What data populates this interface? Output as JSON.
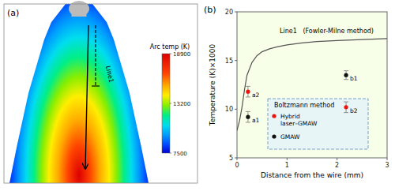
{
  "chart_data": [
    {
      "type": "image",
      "title": "(a)",
      "colorbar_title": "Arc temp (K)",
      "colorbar_range": [
        7500,
        18900
      ],
      "colorbar_ticks": [
        7500,
        13200,
        18900
      ],
      "annotations": [
        "Line1"
      ]
    },
    {
      "type": "line",
      "title": "(b)",
      "xlabel": "Distance from the wire (mm)",
      "ylabel": "Temperature (K)×1000",
      "xlim": [
        0,
        3
      ],
      "ylim": [
        5,
        20
      ],
      "xticks": [
        0,
        1,
        2,
        3
      ],
      "yticks": [
        5,
        10,
        15,
        20
      ],
      "plot_color": "#f8ffe8",
      "error_color": "#777777",
      "series": [
        {
          "name": "Line1   (Fowler-Milne method)",
          "type": "line",
          "color": "#555555",
          "x": [
            0.0,
            0.05,
            0.1,
            0.15,
            0.2,
            0.3,
            0.4,
            0.5,
            0.65,
            0.8,
            1.0,
            1.3,
            1.6,
            2.0,
            2.5,
            3.0
          ],
          "values": [
            7.8,
            8.8,
            10.2,
            12.0,
            13.5,
            14.8,
            15.5,
            15.9,
            16.2,
            16.4,
            16.6,
            16.8,
            16.95,
            17.05,
            17.15,
            17.25
          ]
        },
        {
          "name": "a2",
          "type": "scatter",
          "color": "#EE1111",
          "x": [
            0.22
          ],
          "values": [
            11.8
          ],
          "errors": [
            0.55
          ]
        },
        {
          "name": "a1",
          "type": "scatter",
          "color": "#111111",
          "x": [
            0.22
          ],
          "values": [
            9.2
          ],
          "errors": [
            0.55
          ]
        },
        {
          "name": "b1",
          "type": "scatter",
          "color": "#111111",
          "x": [
            2.18
          ],
          "values": [
            13.5
          ],
          "errors": [
            0.45
          ]
        },
        {
          "name": "b2",
          "type": "scatter",
          "color": "#EE1111",
          "x": [
            2.18
          ],
          "values": [
            10.2
          ],
          "errors": [
            0.55
          ]
        }
      ],
      "legend_title": "Boltzmann method",
      "legend_box": {
        "edge_color": "#6699cc",
        "face_color": "#ddeeff"
      },
      "legend_entries": [
        {
          "label": "Hybrid\nlaser–GMAW",
          "color": "#EE1111"
        },
        {
          "label": "GMAW",
          "color": "#111111"
        }
      ]
    }
  ]
}
